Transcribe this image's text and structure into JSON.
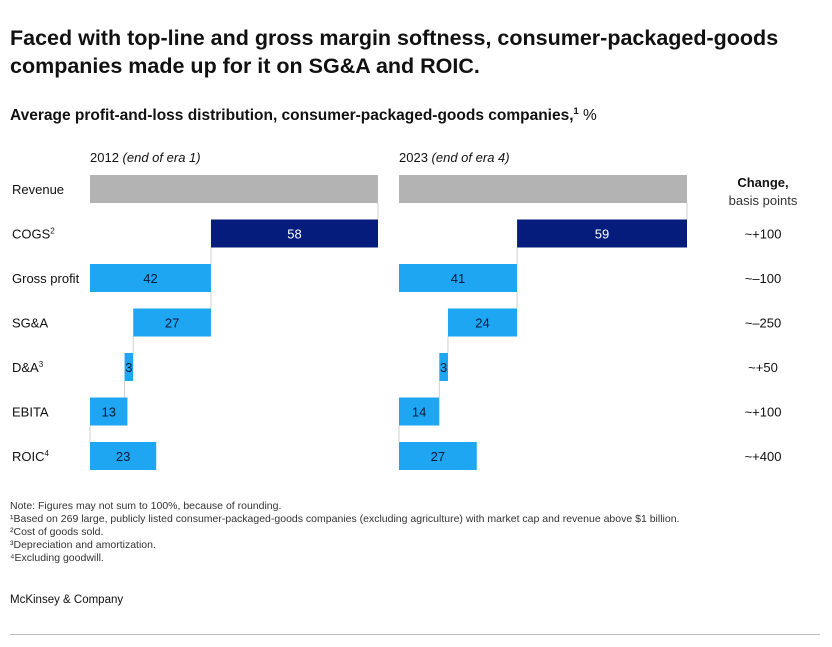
{
  "title": "Faced with top-line and gross margin softness, consumer-packaged-goods companies made up for it on SG&A and ROIC.",
  "subtitle": {
    "text": "Average profit-and-loss distribution, consumer-packaged-goods companies,",
    "sup": "1",
    "unit": " %"
  },
  "chart_data": {
    "type": "bar",
    "subtype": "waterfall",
    "categories": [
      "Revenue",
      "COGS",
      "Gross profit",
      "SG&A",
      "D&A",
      "EBITA",
      "ROIC"
    ],
    "category_sups": [
      "",
      "2",
      "",
      "",
      "3",
      "",
      "4"
    ],
    "panels": [
      {
        "year": "2012",
        "era": "(end of era 1)",
        "values": [
          100,
          58,
          42,
          27,
          3,
          13,
          23
        ],
        "value_labels": [
          "",
          "58",
          "42",
          "27",
          "3",
          "13",
          "23"
        ]
      },
      {
        "year": "2023",
        "era": "(end of era 4)",
        "values": [
          100,
          59,
          41,
          24,
          3,
          14,
          27
        ],
        "value_labels": [
          "",
          "59",
          "41",
          "24",
          "3",
          "14",
          "27"
        ]
      }
    ],
    "change_header": {
      "line1": "Change,",
      "line2": "basis points"
    },
    "changes": [
      "",
      "~+100",
      "~–100",
      "~–250",
      "~+50",
      "~+100",
      "~+400"
    ],
    "colors": {
      "revenue": "#b3b3b3",
      "cogs": "#051c7c",
      "other": "#1fa6f2",
      "connector": "#cfcfcf"
    }
  },
  "notes": [
    "Note: Figures may not sum to 100%, because of rounding.",
    "¹Based on 269 large, publicly listed consumer-packaged-goods companies (excluding agriculture) with market cap and revenue above $1 billion.",
    "²Cost of goods sold.",
    "³Depreciation and amortization.",
    "⁴Excluding goodwill."
  ],
  "brand": "McKinsey & Company"
}
